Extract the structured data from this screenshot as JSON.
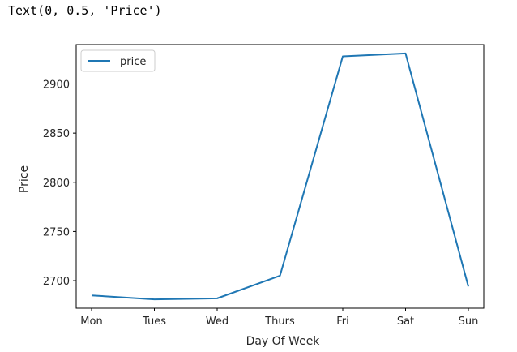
{
  "output_line": "Text(0, 0.5, 'Price')",
  "chart_data": {
    "type": "line",
    "categories": [
      "Mon",
      "Tues",
      "Wed",
      "Thurs",
      "Fri",
      "Sat",
      "Sun"
    ],
    "series": [
      {
        "name": "price",
        "values": [
          2685,
          2681,
          2682,
          2705,
          2928,
          2931,
          2694
        ],
        "color": "#1f77b4"
      }
    ],
    "xlabel": "Day Of Week",
    "ylabel": "Price",
    "ylim": [
      2672,
      2940
    ],
    "yticks": [
      2700,
      2750,
      2800,
      2850,
      2900
    ],
    "grid": false,
    "legend_position": "top-left"
  }
}
